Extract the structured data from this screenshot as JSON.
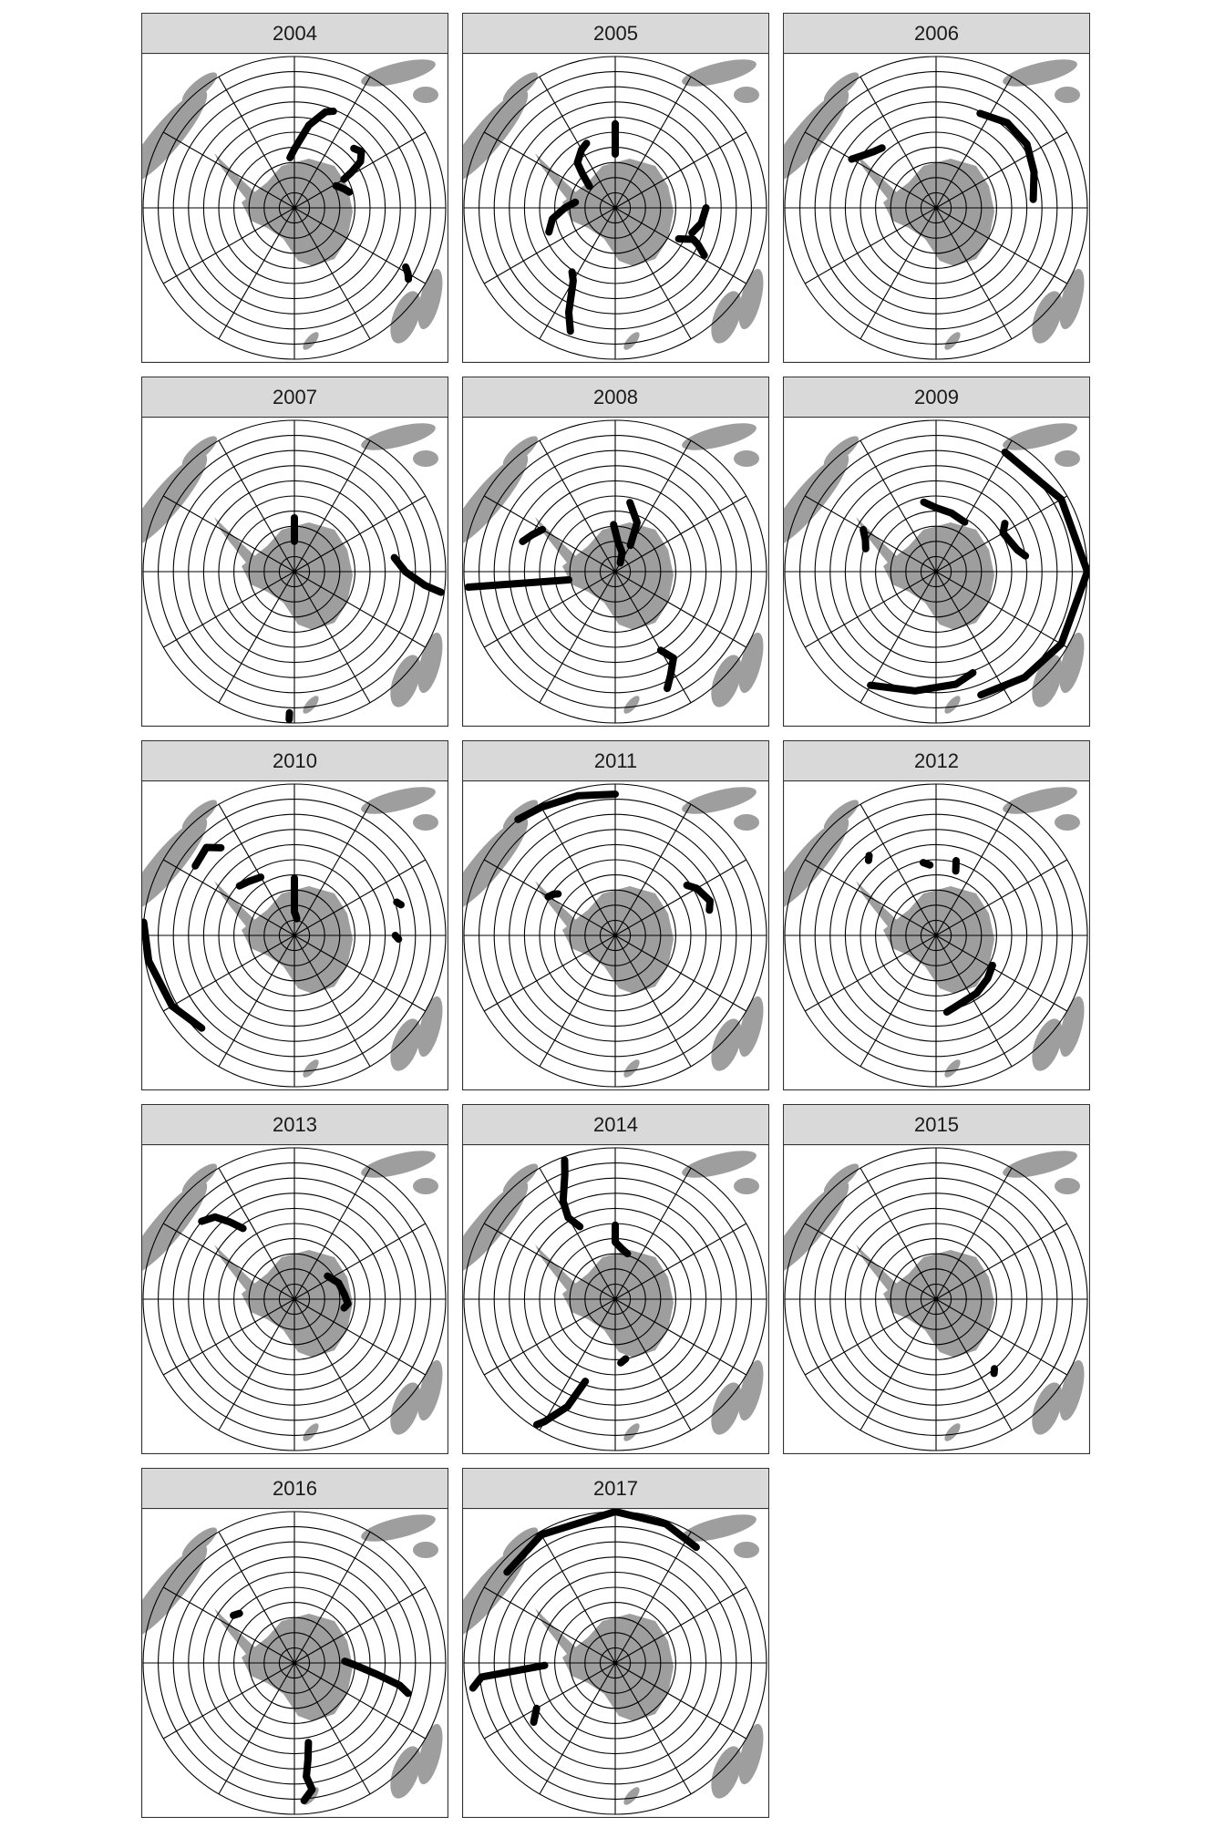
{
  "colors": {
    "land": "#9e9e9e",
    "track": "#000000",
    "strip_bg": "#d9d9d9",
    "grid": "#000000"
  },
  "map": {
    "projection": "south-polar",
    "graticule_rings": 10,
    "graticule_meridians": 12
  },
  "panels": [
    {
      "year": "2004",
      "tracks": [
        {
          "points": [
            [
              -5,
              60
            ],
            [
              0,
              55
            ],
            [
              10,
              40
            ],
            [
              18,
              30
            ],
            [
              22,
              28
            ]
          ]
        },
        {
          "points": [
            [
              45,
              40
            ],
            [
              50,
              38
            ],
            [
              55,
              42
            ],
            [
              58,
              50
            ],
            [
              60,
              56
            ]
          ]
        },
        {
          "points": [
            [
              62,
              62
            ],
            [
              66,
              60
            ],
            [
              70,
              58
            ],
            [
              74,
              56
            ]
          ]
        },
        {
          "points": [
            [
              118,
              15
            ],
            [
              120,
              12
            ],
            [
              122,
              10
            ]
          ]
        }
      ]
    },
    {
      "year": "2005",
      "tracks": [
        {
          "points": [
            [
              -50,
              70
            ],
            [
              -44,
              62
            ],
            [
              -40,
              55
            ],
            [
              -30,
              50
            ],
            [
              -24,
              48
            ]
          ]
        },
        {
          "points": [
            [
              0,
              58
            ],
            [
              0,
              48
            ],
            [
              0,
              40
            ]
          ]
        },
        {
          "points": [
            [
              -110,
              48
            ],
            [
              -100,
              52
            ],
            [
              -90,
              60
            ],
            [
              -82,
              66
            ]
          ]
        },
        {
          "points": [
            [
              90,
              36
            ],
            [
              100,
              38
            ],
            [
              108,
              42
            ]
          ]
        },
        {
          "points": [
            [
              118,
              30
            ],
            [
              114,
              36
            ],
            [
              112,
              40
            ],
            [
              116,
              48
            ]
          ]
        },
        {
          "points": [
            [
              -160,
              12
            ],
            [
              -156,
              22
            ],
            [
              -150,
              40
            ],
            [
              -146,
              44
            ]
          ]
        }
      ]
    },
    {
      "year": "2006",
      "tracks": [
        {
          "points": [
            [
              -60,
              32
            ],
            [
              -55,
              36
            ],
            [
              -48,
              40
            ],
            [
              -42,
              42
            ]
          ]
        },
        {
          "points": [
            [
              25,
              28
            ],
            [
              40,
              24
            ],
            [
              55,
              24
            ],
            [
              70,
              28
            ],
            [
              85,
              32
            ]
          ]
        }
      ]
    },
    {
      "year": "2007",
      "tracks": [
        {
          "points": [
            [
              0,
              72
            ],
            [
              0,
              66
            ],
            [
              0,
              58
            ]
          ]
        },
        {
          "points": [
            [
              82,
              30
            ],
            [
              90,
              24
            ],
            [
              96,
              12
            ],
            [
              98,
              2
            ]
          ]
        },
        {
          "points": [
            [
              -178,
              2
            ],
            [
              -178,
              6
            ]
          ]
        }
      ]
    },
    {
      "year": "2008",
      "tracks": [
        {
          "points": [
            [
              -2,
              62
            ],
            [
              5,
              72
            ],
            [
              20,
              78
            ],
            [
              30,
              84
            ]
          ]
        },
        {
          "points": [
            [
              30,
              72
            ],
            [
              24,
              58
            ],
            [
              12,
              48
            ]
          ]
        },
        {
          "points": [
            [
              -60,
              40
            ],
            [
              -66,
              36
            ],
            [
              -72,
              32
            ]
          ]
        },
        {
          "points": [
            [
              -100,
              62
            ],
            [
              -96,
              2
            ]
          ]
        },
        {
          "points": [
            [
              150,
              36
            ],
            [
              146,
              28
            ],
            [
              152,
              20
            ],
            [
              156,
              14
            ]
          ]
        }
      ]
    },
    {
      "year": "2009",
      "tracks": [
        {
          "points": [
            [
              30,
              8
            ],
            [
              60,
              4
            ],
            [
              90,
              0
            ],
            [
              120,
              4
            ],
            [
              140,
              8
            ],
            [
              160,
              12
            ]
          ]
        },
        {
          "points": [
            [
              -10,
              48
            ],
            [
              0,
              52
            ],
            [
              15,
              54
            ],
            [
              30,
              56
            ]
          ]
        },
        {
          "points": [
            [
              -150,
              12
            ],
            [
              -170,
              18
            ],
            [
              170,
              22
            ],
            [
              160,
              26
            ]
          ]
        },
        {
          "points": [
            [
              -72,
              46
            ],
            [
              -66,
              44
            ],
            [
              -60,
              40
            ]
          ]
        },
        {
          "points": [
            [
              55,
              40
            ],
            [
              60,
              44
            ],
            [
              75,
              40
            ],
            [
              80,
              36
            ]
          ]
        }
      ]
    },
    {
      "year": "2010",
      "tracks": [
        {
          "points": [
            [
              -85,
              0
            ],
            [
              -100,
              2
            ],
            [
              -120,
              6
            ],
            [
              -135,
              12
            ]
          ]
        },
        {
          "points": [
            [
              0,
              56
            ],
            [
              0,
              64
            ],
            [
              0,
              76
            ],
            [
              4,
              78
            ],
            [
              8,
              80
            ]
          ]
        },
        {
          "points": [
            [
              -30,
              50
            ],
            [
              -40,
              48
            ],
            [
              -48,
              46
            ]
          ]
        },
        {
          "points": [
            [
              -40,
              22
            ],
            [
              -45,
              16
            ],
            [
              -55,
              18
            ]
          ]
        },
        {
          "points": [
            [
              72,
              26
            ],
            [
              74,
              24
            ]
          ]
        },
        {
          "points": [
            [
              90,
              30
            ],
            [
              92,
              28
            ]
          ]
        }
      ]
    },
    {
      "year": "2011",
      "tracks": [
        {
          "points": [
            [
              -40,
              0
            ],
            [
              -30,
              2
            ],
            [
              -15,
              4
            ],
            [
              0,
              6
            ]
          ]
        },
        {
          "points": [
            [
              -60,
              44
            ],
            [
              -56,
              46
            ],
            [
              -54,
              48
            ]
          ]
        },
        {
          "points": [
            [
              55,
              38
            ],
            [
              60,
              34
            ],
            [
              70,
              30
            ],
            [
              75,
              32
            ]
          ]
        }
      ]
    },
    {
      "year": "2012",
      "tracks": [
        {
          "points": [
            [
              -40,
              28
            ],
            [
              -42,
              30
            ]
          ]
        },
        {
          "points": [
            [
              -10,
              46
            ],
            [
              -5,
              48
            ]
          ]
        },
        {
          "points": [
            [
              15,
              44
            ],
            [
              17,
              50
            ]
          ]
        },
        {
          "points": [
            [
              118,
              52
            ],
            [
              130,
              50
            ],
            [
              145,
              48
            ],
            [
              165,
              46
            ],
            [
              172,
              44
            ]
          ]
        }
      ]
    },
    {
      "year": "2013",
      "tracks": [
        {
          "points": [
            [
              -50,
              18
            ],
            [
              -44,
              22
            ],
            [
              -40,
              30
            ],
            [
              -36,
              38
            ]
          ]
        },
        {
          "points": [
            [
              55,
              66
            ],
            [
              70,
              62
            ],
            [
              85,
              60
            ],
            [
              95,
              58
            ],
            [
              100,
              60
            ]
          ]
        }
      ]
    },
    {
      "year": "2014",
      "tracks": [
        {
          "points": [
            [
              -20,
              2
            ],
            [
              -22,
              10
            ],
            [
              -28,
              24
            ],
            [
              -30,
              34
            ],
            [
              -26,
              42
            ]
          ]
        },
        {
          "points": [
            [
              0,
              46
            ],
            [
              0,
              56
            ],
            [
              8,
              60
            ],
            [
              15,
              62
            ]
          ]
        },
        {
          "points": [
            [
              -160,
              38
            ],
            [
              -156,
              20
            ],
            [
              -150,
              6
            ],
            [
              -148,
              2
            ]
          ]
        },
        {
          "points": [
            [
              175,
              52
            ],
            [
              170,
              54
            ]
          ]
        }
      ]
    },
    {
      "year": "2015",
      "tracks": [
        {
          "points": [
            [
              140,
              36
            ],
            [
              142,
              34
            ]
          ]
        }
      ]
    },
    {
      "year": "2016",
      "tracks": [
        {
          "points": [
            [
              -48,
              46
            ],
            [
              -52,
              44
            ]
          ]
        },
        {
          "points": [
            [
              88,
              60
            ],
            [
              92,
              54
            ],
            [
              98,
              40
            ],
            [
              102,
              26
            ],
            [
              105,
              20
            ]
          ]
        },
        {
          "points": [
            [
              170,
              42
            ],
            [
              172,
              32
            ],
            [
              174,
              22
            ],
            [
              172,
              14
            ],
            [
              176,
              8
            ]
          ]
        }
      ]
    },
    {
      "year": "2017",
      "tracks": [
        {
          "points": [
            [
              -50,
              6
            ],
            [
              -30,
              2
            ],
            [
              0,
              0
            ],
            [
              20,
              2
            ],
            [
              35,
              6
            ]
          ]
        },
        {
          "points": [
            [
              -100,
              4
            ],
            [
              -96,
              10
            ],
            [
              -92,
              48
            ]
          ]
        },
        {
          "points": [
            [
              -126,
              30
            ],
            [
              -120,
              36
            ]
          ]
        }
      ]
    }
  ]
}
